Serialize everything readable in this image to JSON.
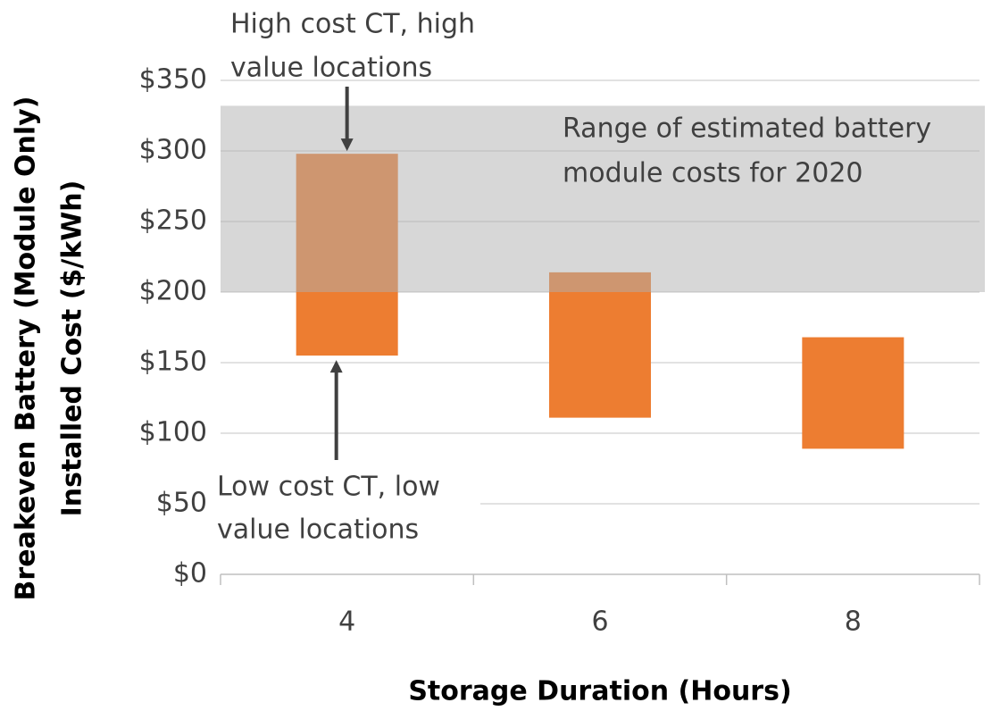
{
  "chart_data": {
    "type": "floating_bar",
    "y_label": [
      "Breakeven Battery (Module Only)",
      "Installed Cost ($/kWh)"
    ],
    "x_label": "Storage Duration (Hours)",
    "categories": [
      "4",
      "6",
      "8"
    ],
    "low": [
      155,
      111,
      89
    ],
    "high": [
      298,
      214,
      168
    ],
    "color": "#ed7d31",
    "ylim": [
      0,
      350
    ],
    "yticks": [
      {
        "value": 0,
        "label": "$0"
      },
      {
        "value": 50,
        "label": "$50"
      },
      {
        "value": 100,
        "label": "$100"
      },
      {
        "value": 150,
        "label": "$150"
      },
      {
        "value": 200,
        "label": "$200"
      },
      {
        "value": 250,
        "label": "$250"
      },
      {
        "value": 300,
        "label": "$300"
      },
      {
        "value": 350,
        "label": "$350"
      }
    ],
    "grid": true,
    "shaded_range": {
      "values": [
        200,
        332
      ],
      "color": "#b0b0b0",
      "lines": [
        "Range of estimated battery",
        "module costs for 2020"
      ]
    },
    "annotations": [
      {
        "lines": [
          "High cost CT, high",
          "value locations"
        ]
      },
      {
        "lines": [
          "Low cost CT, low",
          "value locations"
        ]
      }
    ]
  }
}
